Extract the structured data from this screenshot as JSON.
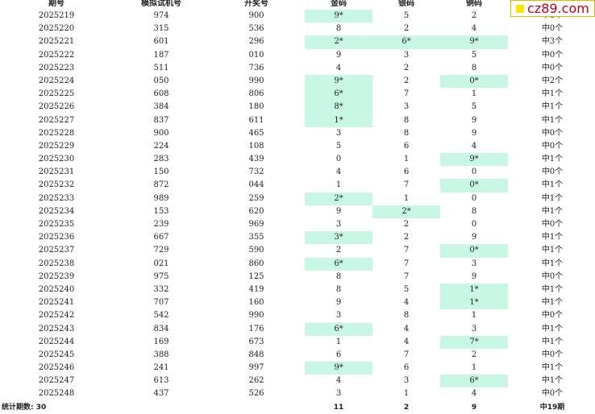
{
  "headers": [
    "期号",
    "模拟试机号",
    "开奖号",
    "金码",
    "银码",
    "铜码",
    ""
  ],
  "rows": [
    {
      "issue": "2025219",
      "sim": "974",
      "draw": "900",
      "gold": "9*",
      "silver": "5",
      "bronze": "2",
      "result": "中1个",
      "hl": [
        true,
        false,
        false
      ]
    },
    {
      "issue": "2025220",
      "sim": "315",
      "draw": "536",
      "gold": "8",
      "silver": "2",
      "bronze": "4",
      "result": "中0个",
      "hl": [
        false,
        false,
        false
      ]
    },
    {
      "issue": "2025221",
      "sim": "601",
      "draw": "296",
      "gold": "2*",
      "silver": "6*",
      "bronze": "9*",
      "result": "中3个",
      "hl": [
        true,
        true,
        true
      ]
    },
    {
      "issue": "2025222",
      "sim": "187",
      "draw": "010",
      "gold": "9",
      "silver": "3",
      "bronze": "5",
      "result": "中0个",
      "hl": [
        false,
        false,
        false
      ]
    },
    {
      "issue": "2025223",
      "sim": "511",
      "draw": "736",
      "gold": "4",
      "silver": "2",
      "bronze": "8",
      "result": "中0个",
      "hl": [
        false,
        false,
        false
      ]
    },
    {
      "issue": "2025224",
      "sim": "050",
      "draw": "990",
      "gold": "9*",
      "silver": "2",
      "bronze": "0*",
      "result": "中2个",
      "hl": [
        true,
        false,
        true
      ]
    },
    {
      "issue": "2025225",
      "sim": "608",
      "draw": "806",
      "gold": "6*",
      "silver": "7",
      "bronze": "1",
      "result": "中1个",
      "hl": [
        true,
        false,
        false
      ]
    },
    {
      "issue": "2025226",
      "sim": "384",
      "draw": "180",
      "gold": "8*",
      "silver": "3",
      "bronze": "5",
      "result": "中1个",
      "hl": [
        true,
        false,
        false
      ]
    },
    {
      "issue": "2025227",
      "sim": "837",
      "draw": "611",
      "gold": "1*",
      "silver": "8",
      "bronze": "9",
      "result": "中1个",
      "hl": [
        true,
        false,
        false
      ]
    },
    {
      "issue": "2025228",
      "sim": "900",
      "draw": "465",
      "gold": "3",
      "silver": "8",
      "bronze": "9",
      "result": "中0个",
      "hl": [
        false,
        false,
        false
      ]
    },
    {
      "issue": "2025229",
      "sim": "224",
      "draw": "108",
      "gold": "5",
      "silver": "6",
      "bronze": "4",
      "result": "中0个",
      "hl": [
        false,
        false,
        false
      ]
    },
    {
      "issue": "2025230",
      "sim": "283",
      "draw": "439",
      "gold": "0",
      "silver": "1",
      "bronze": "9*",
      "result": "中1个",
      "hl": [
        false,
        false,
        true
      ]
    },
    {
      "issue": "2025231",
      "sim": "150",
      "draw": "732",
      "gold": "4",
      "silver": "6",
      "bronze": "0",
      "result": "中0个",
      "hl": [
        false,
        false,
        false
      ]
    },
    {
      "issue": "2025232",
      "sim": "872",
      "draw": "044",
      "gold": "1",
      "silver": "7",
      "bronze": "0*",
      "result": "中1个",
      "hl": [
        false,
        false,
        true
      ]
    },
    {
      "issue": "2025233",
      "sim": "989",
      "draw": "259",
      "gold": "2*",
      "silver": "1",
      "bronze": "0",
      "result": "中1个",
      "hl": [
        true,
        false,
        false
      ]
    },
    {
      "issue": "2025234",
      "sim": "153",
      "draw": "620",
      "gold": "9",
      "silver": "2*",
      "bronze": "8",
      "result": "中1个",
      "hl": [
        false,
        true,
        false
      ]
    },
    {
      "issue": "2025235",
      "sim": "239",
      "draw": "969",
      "gold": "3",
      "silver": "2",
      "bronze": "0",
      "result": "中0个",
      "hl": [
        false,
        false,
        false
      ]
    },
    {
      "issue": "2025236",
      "sim": "667",
      "draw": "355",
      "gold": "3*",
      "silver": "2",
      "bronze": "9",
      "result": "中1个",
      "hl": [
        true,
        false,
        false
      ]
    },
    {
      "issue": "2025237",
      "sim": "729",
      "draw": "590",
      "gold": "2",
      "silver": "7",
      "bronze": "0*",
      "result": "中1个",
      "hl": [
        false,
        false,
        true
      ]
    },
    {
      "issue": "2025238",
      "sim": "021",
      "draw": "860",
      "gold": "6*",
      "silver": "7",
      "bronze": "3",
      "result": "中1个",
      "hl": [
        true,
        false,
        false
      ]
    },
    {
      "issue": "2025239",
      "sim": "975",
      "draw": "125",
      "gold": "8",
      "silver": "7",
      "bronze": "9",
      "result": "中0个",
      "hl": [
        false,
        false,
        false
      ]
    },
    {
      "issue": "2025240",
      "sim": "332",
      "draw": "419",
      "gold": "8",
      "silver": "5",
      "bronze": "1*",
      "result": "中1个",
      "hl": [
        false,
        false,
        true
      ]
    },
    {
      "issue": "2025241",
      "sim": "707",
      "draw": "160",
      "gold": "9",
      "silver": "4",
      "bronze": "1*",
      "result": "中1个",
      "hl": [
        false,
        false,
        true
      ]
    },
    {
      "issue": "2025242",
      "sim": "542",
      "draw": "990",
      "gold": "3",
      "silver": "8",
      "bronze": "1",
      "result": "中0个",
      "hl": [
        false,
        false,
        false
      ]
    },
    {
      "issue": "2025243",
      "sim": "834",
      "draw": "176",
      "gold": "6*",
      "silver": "4",
      "bronze": "3",
      "result": "中1个",
      "hl": [
        true,
        false,
        false
      ]
    },
    {
      "issue": "2025244",
      "sim": "169",
      "draw": "673",
      "gold": "1",
      "silver": "4",
      "bronze": "7*",
      "result": "中1个",
      "hl": [
        false,
        false,
        true
      ]
    },
    {
      "issue": "2025245",
      "sim": "388",
      "draw": "848",
      "gold": "6",
      "silver": "7",
      "bronze": "2",
      "result": "中0个",
      "hl": [
        false,
        false,
        false
      ]
    },
    {
      "issue": "2025246",
      "sim": "241",
      "draw": "997",
      "gold": "9*",
      "silver": "6",
      "bronze": "1",
      "result": "中1个",
      "hl": [
        true,
        false,
        false
      ]
    },
    {
      "issue": "2025247",
      "sim": "613",
      "draw": "262",
      "gold": "4",
      "silver": "3",
      "bronze": "6*",
      "result": "中1个",
      "hl": [
        false,
        false,
        true
      ]
    },
    {
      "issue": "2025248",
      "sim": "437",
      "draw": "526",
      "gold": "3",
      "silver": "1",
      "bronze": "4",
      "result": "中0个",
      "hl": [
        false,
        false,
        false
      ]
    }
  ],
  "summary": {
    "label": "统计期数: 30",
    "gold": "11",
    "silver": "2",
    "bronze": "9",
    "result": "中19期"
  },
  "logo": {
    "text": "cz89.com",
    "square_color": "#ffe400",
    "text_color": "#c0001a"
  },
  "colors": {
    "highlight": "#c8f8e4"
  }
}
